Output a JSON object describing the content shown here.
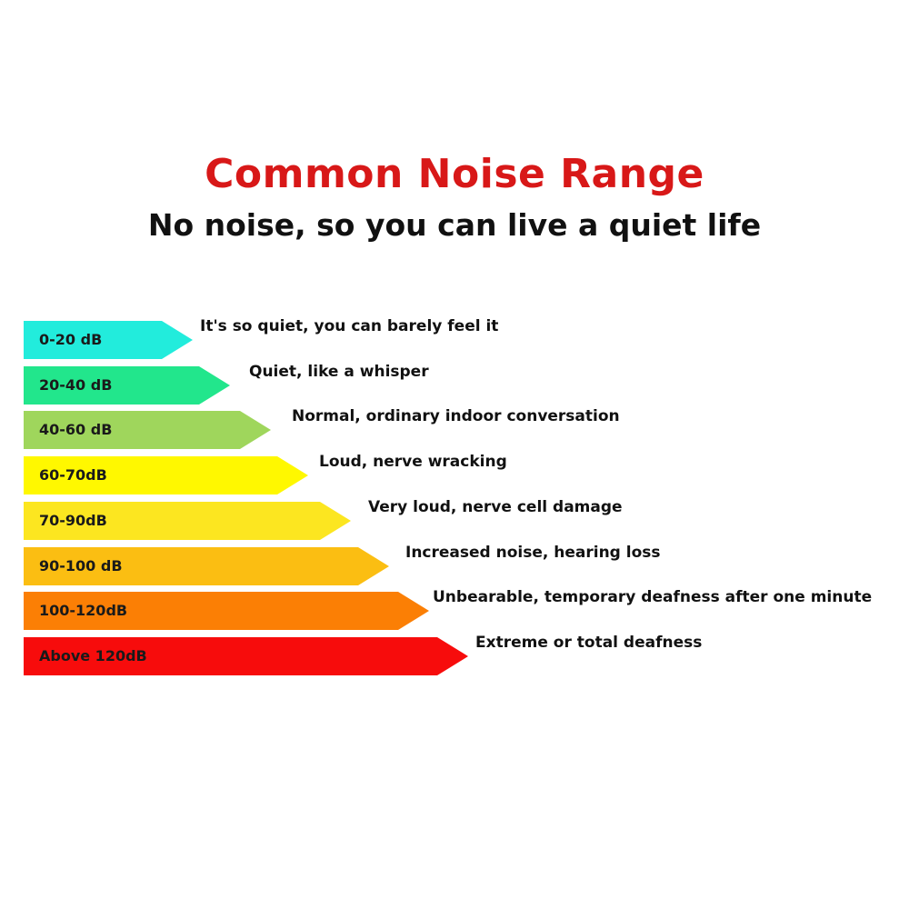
{
  "header": {
    "title": "Common Noise Range",
    "subtitle": "No noise, so you can live a quiet life"
  },
  "levels": [
    {
      "range": "0-20 dB",
      "description": "It's so quiet, you can barely feel it",
      "color": "#22ECDC"
    },
    {
      "range": "20-40 dB",
      "description": "Quiet, like a whisper",
      "color": "#22E68C"
    },
    {
      "range": "40-60 dB",
      "description": "Normal, ordinary indoor conversation",
      "color": "#9FD65C"
    },
    {
      "range": "60-70dB",
      "description": "Loud, nerve wracking",
      "color": "#FFF800"
    },
    {
      "range": "70-90dB",
      "description": "Very loud, nerve cell damage",
      "color": "#FCE620"
    },
    {
      "range": "90-100 dB",
      "description": "Increased noise, hearing loss",
      "color": "#FBBE12"
    },
    {
      "range": "100-120dB",
      "description": "Unbearable, temporary deafness after one minute",
      "color": "#FB7F05"
    },
    {
      "range": "Above 120dB",
      "description": "Extreme or total deafness",
      "color": "#F70C0C"
    }
  ]
}
